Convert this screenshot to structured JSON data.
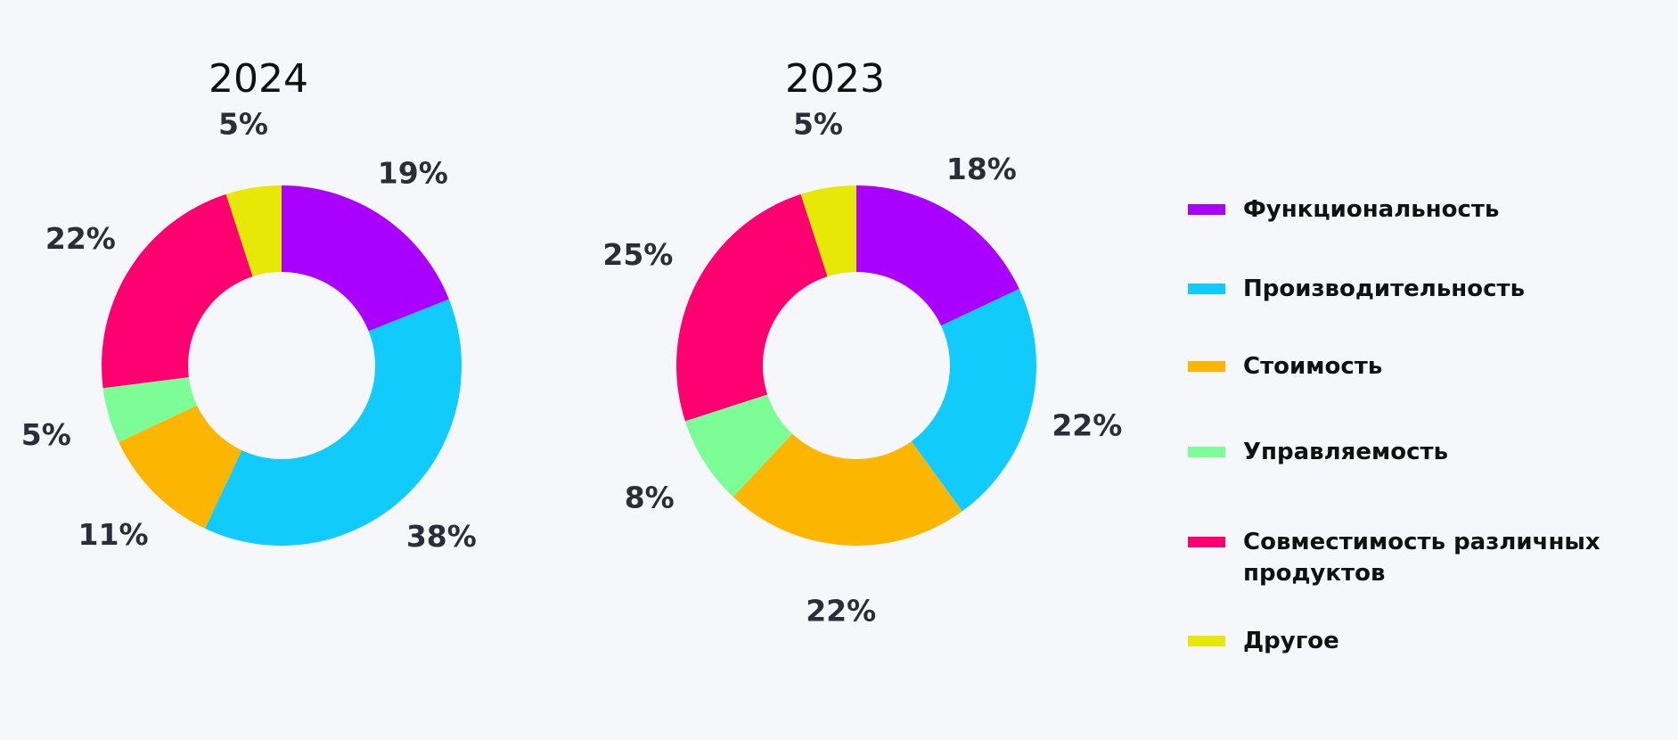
{
  "chart_data": {
    "type": "donut",
    "categories": [
      "Функциональность",
      "Производительность",
      "Стоимость",
      "Управляемость",
      "Совместимость различных продуктов",
      "Другое"
    ],
    "colors": [
      "#aa00ff",
      "#12cbfd",
      "#fdb600",
      "#7dfd96",
      "#ff0070",
      "#e8e807"
    ],
    "legend_position": "right",
    "charts": [
      {
        "title": "2024",
        "values": [
          19,
          38,
          11,
          5,
          22,
          5
        ],
        "labels": [
          "19%",
          "38%",
          "11%",
          "5%",
          "22%",
          "5%"
        ]
      },
      {
        "title": "2023",
        "values": [
          18,
          22,
          22,
          8,
          25,
          5
        ],
        "labels": [
          "18%",
          "22%",
          "22%",
          "8%",
          "25%",
          "5%"
        ]
      }
    ]
  },
  "legend": {
    "items": [
      {
        "label": "Функциональность",
        "color": "#aa00ff"
      },
      {
        "label": "Производительность",
        "color": "#12cbfd"
      },
      {
        "label": "Стоимость",
        "color": "#fdb600"
      },
      {
        "label": "Управляемость",
        "color": "#7dfd96"
      },
      {
        "label": "Совместимость различных продуктов",
        "color": "#ff0070"
      },
      {
        "label": "Другое",
        "color": "#e8e807"
      }
    ]
  }
}
